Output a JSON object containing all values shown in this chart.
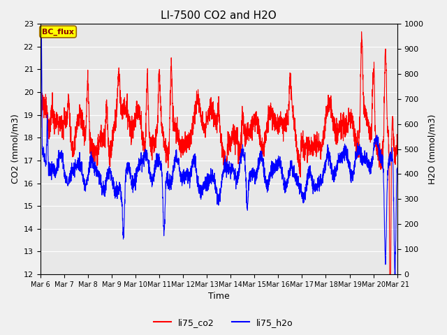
{
  "title": "LI-7500 CO2 and H2O",
  "xlabel": "Time",
  "ylabel_left": "CO2 (mmol/m3)",
  "ylabel_right": "H2O (mmol/m3)",
  "ylim_left": [
    12.0,
    23.0
  ],
  "ylim_right": [
    0,
    1000
  ],
  "yticks_left": [
    12.0,
    13.0,
    14.0,
    15.0,
    16.0,
    17.0,
    18.0,
    19.0,
    20.0,
    21.0,
    22.0,
    23.0
  ],
  "yticks_right": [
    0,
    100,
    200,
    300,
    400,
    500,
    600,
    700,
    800,
    900,
    1000
  ],
  "xtick_labels": [
    "Mar 6",
    "Mar 7",
    "Mar 8",
    "Mar 9",
    "Mar 10",
    "Mar 11",
    "Mar 12",
    "Mar 13",
    "Mar 14",
    "Mar 15",
    "Mar 16",
    "Mar 17",
    "Mar 18",
    "Mar 19",
    "Mar 20",
    "Mar 21"
  ],
  "annotation_text": "BC_flux",
  "annotation_bgcolor": "#FFFF00",
  "annotation_edgecolor": "#996600",
  "annotation_textcolor": "#8B0000",
  "line_co2_color": "red",
  "line_h2o_color": "blue",
  "legend_labels": [
    "li75_co2",
    "li75_h2o"
  ],
  "background_color": "#f0f0f0",
  "plot_bg_color": "#e8e8e8",
  "grid_color": "#ffffff",
  "n_points": 3000
}
